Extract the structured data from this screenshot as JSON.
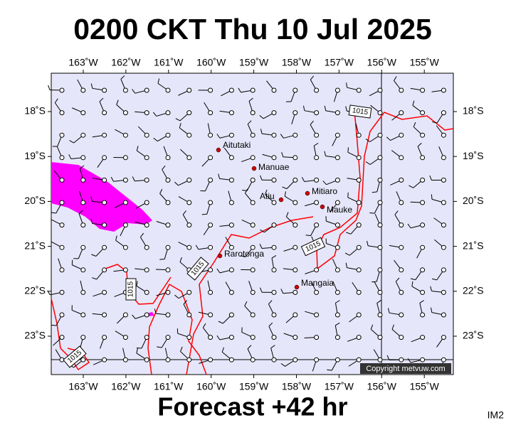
{
  "header": {
    "title": "0200 CKT Thu 10 Jul 2025"
  },
  "axes": {
    "longitudes": [
      "163˚W",
      "162˚W",
      "161˚W",
      "160˚W",
      "159˚W",
      "158˚W",
      "157˚W",
      "156˚W",
      "155˚W"
    ],
    "latitudes": [
      "18˚S",
      "19˚S",
      "20˚S",
      "21˚S",
      "22˚S",
      "23˚S"
    ]
  },
  "places": [
    "Aitutaki",
    "Manuae",
    "Atiu",
    "Mitiaro",
    "Mauke",
    "Rarotonga",
    "Mangaia"
  ],
  "isobar_labels": [
    "1015",
    "1015",
    "1015",
    "1015",
    "1015"
  ],
  "copyright": "Copyright metvuw.com",
  "footer": {
    "forecast": "Forecast +42 hr",
    "image_id": "IM2"
  }
}
